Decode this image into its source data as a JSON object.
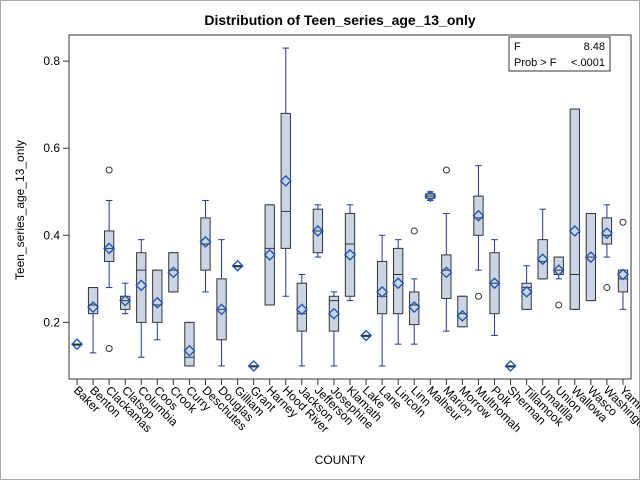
{
  "chart_data": {
    "type": "box",
    "title": "Distribution of Teen_series_age_13_only",
    "xlabel": "COUNTY",
    "ylabel": "Teen_series_age_13_only",
    "ylim": [
      0.07,
      0.86
    ],
    "yticks": [
      0.2,
      0.4,
      0.6,
      0.8
    ],
    "grid": false,
    "stats_box": {
      "placement": "top-right",
      "rows": [
        {
          "label": "F",
          "value": "8.48"
        },
        {
          "label": "Prob > F",
          "value": "<.0001"
        }
      ]
    },
    "categories": [
      "Baker",
      "Benton",
      "Clackamas",
      "Clatsop",
      "Columbia",
      "Coos",
      "Crook",
      "Curry",
      "Deschutes",
      "Douglas",
      "Gilliam",
      "Grant",
      "Harney",
      "Hood River",
      "Jackson",
      "Jefferson",
      "Josephine",
      "Klamath",
      "Lake",
      "Lane",
      "Lincoln",
      "Linn",
      "Malheur",
      "Marion",
      "Morrow",
      "Multnomah",
      "Polk",
      "Sherman",
      "Tillamook",
      "Umatilla",
      "Union",
      "Wallowa",
      "Wasco",
      "Washington",
      "Yamhill"
    ],
    "series": [
      {
        "box": [
          0.15,
          0.15,
          0.15,
          0.15,
          0.15
        ],
        "mean": 0.15,
        "outliers": []
      },
      {
        "box": [
          0.13,
          0.22,
          0.24,
          0.28,
          0.28
        ],
        "mean": 0.235,
        "outliers": []
      },
      {
        "box": [
          0.28,
          0.34,
          0.37,
          0.41,
          0.48
        ],
        "mean": 0.37,
        "outliers": [
          0.55,
          0.14
        ]
      },
      {
        "box": [
          0.22,
          0.23,
          0.25,
          0.26,
          0.29
        ],
        "mean": 0.25,
        "outliers": []
      },
      {
        "box": [
          0.12,
          0.2,
          0.32,
          0.36,
          0.39
        ],
        "mean": 0.285,
        "outliers": []
      },
      {
        "box": [
          0.16,
          0.2,
          0.24,
          0.32,
          0.32
        ],
        "mean": 0.245,
        "outliers": []
      },
      {
        "box": [
          0.27,
          0.27,
          0.32,
          0.36,
          0.36
        ],
        "mean": 0.315,
        "outliers": []
      },
      {
        "box": [
          0.1,
          0.1,
          0.12,
          0.2,
          0.2
        ],
        "mean": 0.135,
        "outliers": []
      },
      {
        "box": [
          0.27,
          0.32,
          0.38,
          0.44,
          0.48
        ],
        "mean": 0.385,
        "outliers": []
      },
      {
        "box": [
          0.1,
          0.16,
          0.23,
          0.3,
          0.39
        ],
        "mean": 0.23,
        "outliers": []
      },
      {
        "box": [
          0.33,
          0.33,
          0.33,
          0.33,
          0.33
        ],
        "mean": 0.33,
        "outliers": []
      },
      {
        "box": [
          0.1,
          0.1,
          0.1,
          0.1,
          0.1
        ],
        "mean": 0.1,
        "outliers": []
      },
      {
        "box": [
          0.24,
          0.24,
          0.37,
          0.47,
          0.47
        ],
        "mean": 0.355,
        "outliers": []
      },
      {
        "box": [
          0.26,
          0.37,
          0.455,
          0.68,
          0.83
        ],
        "mean": 0.525,
        "outliers": []
      },
      {
        "box": [
          0.1,
          0.18,
          0.22,
          0.29,
          0.31
        ],
        "mean": 0.23,
        "outliers": []
      },
      {
        "box": [
          0.35,
          0.36,
          0.41,
          0.46,
          0.47
        ],
        "mean": 0.41,
        "outliers": []
      },
      {
        "box": [
          0.1,
          0.18,
          0.25,
          0.26,
          0.27
        ],
        "mean": 0.22,
        "outliers": []
      },
      {
        "box": [
          0.25,
          0.26,
          0.38,
          0.45,
          0.47
        ],
        "mean": 0.355,
        "outliers": []
      },
      {
        "box": [
          0.17,
          0.17,
          0.17,
          0.17,
          0.17
        ],
        "mean": 0.17,
        "outliers": []
      },
      {
        "box": [
          0.1,
          0.22,
          0.26,
          0.34,
          0.4
        ],
        "mean": 0.27,
        "outliers": []
      },
      {
        "box": [
          0.15,
          0.22,
          0.31,
          0.37,
          0.39
        ],
        "mean": 0.29,
        "outliers": []
      },
      {
        "box": [
          0.15,
          0.195,
          0.24,
          0.27,
          0.3
        ],
        "mean": 0.235,
        "outliers": [
          0.41
        ]
      },
      {
        "box": [
          0.48,
          0.485,
          0.49,
          0.495,
          0.5
        ],
        "mean": 0.49,
        "outliers": []
      },
      {
        "box": [
          0.18,
          0.255,
          0.32,
          0.355,
          0.45
        ],
        "mean": 0.315,
        "outliers": [
          0.55
        ]
      },
      {
        "box": [
          0.19,
          0.19,
          0.22,
          0.26,
          0.26
        ],
        "mean": 0.215,
        "outliers": []
      },
      {
        "box": [
          0.32,
          0.4,
          0.44,
          0.49,
          0.56
        ],
        "mean": 0.445,
        "outliers": [
          0.26
        ]
      },
      {
        "box": [
          0.17,
          0.22,
          0.29,
          0.36,
          0.39
        ],
        "mean": 0.29,
        "outliers": []
      },
      {
        "box": [
          0.1,
          0.1,
          0.1,
          0.1,
          0.1
        ],
        "mean": 0.1,
        "outliers": []
      },
      {
        "box": [
          0.23,
          0.23,
          0.28,
          0.29,
          0.33
        ],
        "mean": 0.27,
        "outliers": []
      },
      {
        "box": [
          0.3,
          0.3,
          0.34,
          0.39,
          0.46
        ],
        "mean": 0.345,
        "outliers": []
      },
      {
        "box": [
          0.3,
          0.31,
          0.32,
          0.35,
          0.35
        ],
        "mean": 0.32,
        "outliers": [
          0.24
        ]
      },
      {
        "box": [
          0.23,
          0.23,
          0.31,
          0.69,
          0.69
        ],
        "mean": 0.41,
        "outliers": []
      },
      {
        "box": [
          0.25,
          0.25,
          0.35,
          0.45,
          0.45
        ],
        "mean": 0.35,
        "outliers": []
      },
      {
        "box": [
          0.35,
          0.38,
          0.4,
          0.44,
          0.47
        ],
        "mean": 0.405,
        "outliers": [
          0.28
        ]
      },
      {
        "box": [
          0.23,
          0.27,
          0.3,
          0.32,
          0.32
        ],
        "mean": 0.31,
        "outliers": [
          0.43
        ]
      }
    ]
  },
  "colors": {
    "box_fill": "#ccd5e6",
    "box_edge": "#1f3a93",
    "whisker": "#1f3a93",
    "mean_marker": "#1f5ab4",
    "axis": "#333333",
    "frame": "#aaaaaa",
    "background": "#ffffff"
  }
}
